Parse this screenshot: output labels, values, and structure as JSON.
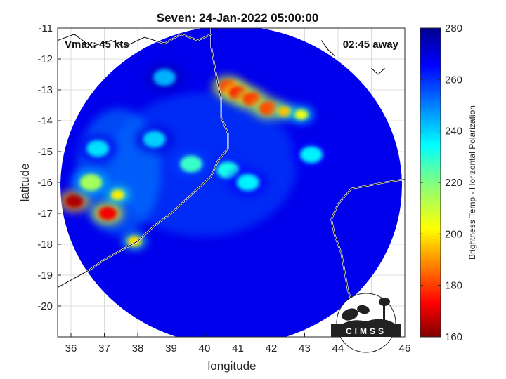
{
  "chart_data": {
    "type": "heatmap",
    "title": "Seven: 24-Jan-2022 05:00:00",
    "xlabel": "longitude",
    "ylabel": "latitude",
    "xlim": [
      35.6,
      46
    ],
    "ylim": [
      -21,
      -11
    ],
    "xticks": [
      "36",
      "37",
      "38",
      "39",
      "40",
      "41",
      "42",
      "43",
      "44",
      "45",
      "46"
    ],
    "yticks": [
      "-11",
      "-12",
      "-13",
      "-14",
      "-15",
      "-16",
      "-17",
      "-18",
      "-19",
      "-20"
    ],
    "grid": true,
    "annotations": {
      "vmax": "Vmax: 45 kts",
      "away": "02:45 away"
    },
    "colorbar": {
      "label": "Brightness Temp - Horizontal Polarization",
      "range": [
        160,
        280
      ],
      "ticks": [
        "280",
        "260",
        "240",
        "220",
        "200",
        "180",
        "160"
      ]
    },
    "swath": {
      "center_lon": 40.8,
      "center_lat": -16.1,
      "background_temp": 268
    },
    "features": [
      {
        "lon": 40.7,
        "lat": -12.9,
        "temp": 178
      },
      {
        "lon": 41.0,
        "lat": -13.1,
        "temp": 176
      },
      {
        "lon": 41.4,
        "lat": -13.3,
        "temp": 180
      },
      {
        "lon": 41.9,
        "lat": -13.6,
        "temp": 182
      },
      {
        "lon": 42.4,
        "lat": -13.7,
        "temp": 195
      },
      {
        "lon": 42.9,
        "lat": -13.8,
        "temp": 205
      },
      {
        "lon": 36.1,
        "lat": -16.6,
        "temp": 165
      },
      {
        "lon": 37.1,
        "lat": -17.0,
        "temp": 172
      },
      {
        "lon": 37.4,
        "lat": -16.4,
        "temp": 200
      },
      {
        "lon": 37.9,
        "lat": -17.9,
        "temp": 198
      },
      {
        "lon": 36.6,
        "lat": -16.0,
        "temp": 215
      },
      {
        "lon": 39.6,
        "lat": -15.4,
        "temp": 228
      },
      {
        "lon": 40.7,
        "lat": -15.6,
        "temp": 232
      },
      {
        "lon": 41.3,
        "lat": -16.0,
        "temp": 236
      },
      {
        "lon": 43.2,
        "lat": -15.1,
        "temp": 236
      },
      {
        "lon": 38.5,
        "lat": -14.6,
        "temp": 240
      },
      {
        "lon": 36.8,
        "lat": -14.9,
        "temp": 238
      },
      {
        "lon": 38.8,
        "lat": -12.6,
        "temp": 244
      }
    ]
  },
  "logo": {
    "text": "CIMSS"
  }
}
